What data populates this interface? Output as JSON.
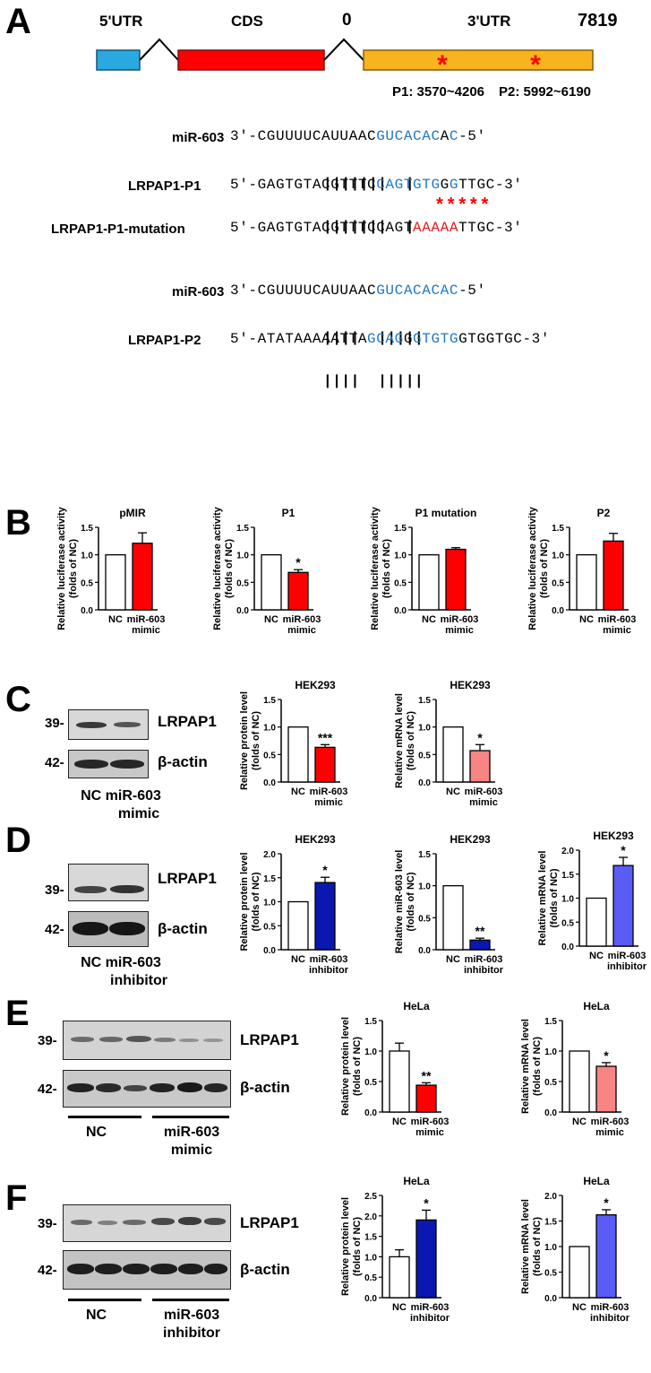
{
  "panels": {
    "A": "A",
    "B": "B",
    "C": "C",
    "D": "D",
    "E": "E",
    "F": "F"
  },
  "gene_map": {
    "utr5": "5'UTR",
    "cds": "CDS",
    "zero": "0",
    "utr3": "3'UTR",
    "end": "7819",
    "p1": "P1: 3570~4206",
    "p2": "P2: 5992~6190",
    "colors": {
      "utr5": "#29a9e0",
      "cds": "#ff0000",
      "utr3": "#f8b41f",
      "star": "#ff0000"
    }
  },
  "alignments": {
    "a1_name": "miR-603",
    "a1_seq": [
      {
        "t": "3′-CGUUUUCAUUAAC",
        "c": "#000000"
      },
      {
        "t": "GUCACAC",
        "c": "#1f77c4"
      },
      {
        "t": "A",
        "c": "#000000"
      },
      {
        "t": "C",
        "c": "#1f77c4"
      },
      {
        "t": "-5′",
        "c": "#000000"
      }
    ],
    "a1_bars": "|||||||  |",
    "a2_name": "LRPAP1-P1",
    "a2_seq": [
      {
        "t": "5′-GAGTGTACGTTTC",
        "c": "#000000"
      },
      {
        "t": "CAGTGTG",
        "c": "#1f77c4"
      },
      {
        "t": "G",
        "c": "#000000"
      },
      {
        "t": "G",
        "c": "#1f77c4"
      },
      {
        "t": "TTGC-3′",
        "c": "#000000"
      }
    ],
    "mut_stars": "*****",
    "a3_name": "LRPAP1-P1-mutation",
    "a3_seq": [
      {
        "t": "5′-GAGTGTACGTTTCCAGT",
        "c": "#000000"
      },
      {
        "t": "AAAAA",
        "c": "#e31a1c"
      },
      {
        "t": "TTGC-3′",
        "c": "#000000"
      }
    ],
    "a4_name": "miR-603",
    "a4_seq": [
      {
        "t": "3′-CGUUUUCAUUAAC",
        "c": "#000000"
      },
      {
        "t": "GUCA",
        "c": "#1f77c4"
      },
      {
        "t": "CACAC",
        "c": "#1f77c4"
      },
      {
        "t": "-5′",
        "c": "#000000"
      }
    ],
    "a4_bars": "||||  |||||",
    "a5_name": "LRPAP1-P2",
    "a5_seq": [
      {
        "t": "5′-ATATAAAAATTA",
        "c": "#000000"
      },
      {
        "t": "GCAG",
        "c": "#1f77c4"
      },
      {
        "t": "G",
        "c": "#000000"
      },
      {
        "t": "GTGTG",
        "c": "#1f77c4"
      },
      {
        "t": "GTGGTGC-3′",
        "c": "#000000"
      }
    ]
  },
  "blots": {
    "lrpap1": "LRPAP1",
    "actin": "β-actin",
    "mw39": "39-",
    "mw42": "42-",
    "c_lanes": "NC miR-603",
    "c_lanes2": "mimic",
    "d_lanes": "NC miR-603",
    "d_lanes2": "inhibitor",
    "e_nc": "NC",
    "e_mir": "miR-603",
    "e_mir2": "mimic",
    "f_nc": "NC",
    "f_mir": "miR-603",
    "f_mir2": "inhibitor"
  },
  "chart_data": [
    {
      "id": "B1",
      "type": "bar",
      "title": "pMIR",
      "ylabel": "Relative luciferase activity\n(folds of NC)",
      "categories": [
        "NC",
        "miR-603\nmimic"
      ],
      "values": [
        1.0,
        1.21
      ],
      "errors": [
        0,
        0.19
      ],
      "ylim": [
        0,
        1.5
      ],
      "ticks": [
        "0.0",
        "0.5",
        "1.0",
        "1.5"
      ],
      "colors": [
        "#ffffff",
        "#ff0000"
      ],
      "sig": [
        "",
        ""
      ]
    },
    {
      "id": "B2",
      "type": "bar",
      "title": "P1",
      "ylabel": "Relative luciferase activity\n(folds of NC)",
      "categories": [
        "NC",
        "miR-603\nmimic"
      ],
      "values": [
        1.0,
        0.68
      ],
      "errors": [
        0,
        0.05
      ],
      "ylim": [
        0,
        1.5
      ],
      "ticks": [
        "0.0",
        "0.5",
        "1.0",
        "1.5"
      ],
      "colors": [
        "#ffffff",
        "#ff0000"
      ],
      "sig": [
        "",
        "*"
      ]
    },
    {
      "id": "B3",
      "type": "bar",
      "title": "P1 mutation",
      "ylabel": "Relative luciferase activity\n(folds of NC)",
      "categories": [
        "NC",
        "miR-603\nmimic"
      ],
      "values": [
        1.0,
        1.1
      ],
      "errors": [
        0,
        0.03
      ],
      "ylim": [
        0,
        1.5
      ],
      "ticks": [
        "0.0",
        "0.5",
        "1.0",
        "1.5"
      ],
      "colors": [
        "#ffffff",
        "#ff0000"
      ],
      "sig": [
        "",
        ""
      ]
    },
    {
      "id": "B4",
      "type": "bar",
      "title": "P2",
      "ylabel": "Relative luciferase activity\n(folds of NC)",
      "categories": [
        "NC",
        "miR-603\nmimic"
      ],
      "values": [
        1.0,
        1.25
      ],
      "errors": [
        0,
        0.14
      ],
      "ylim": [
        0,
        1.5
      ],
      "ticks": [
        "0.0",
        "0.5",
        "1.0",
        "1.5"
      ],
      "colors": [
        "#ffffff",
        "#ff0000"
      ],
      "sig": [
        "",
        ""
      ]
    },
    {
      "id": "C1",
      "type": "bar",
      "title": "HEK293",
      "ylabel": "Relative protein level\n(folds of NC)",
      "categories": [
        "NC",
        "miR-603\nmimic"
      ],
      "values": [
        1.0,
        0.63
      ],
      "errors": [
        0,
        0.05
      ],
      "ylim": [
        0,
        1.5
      ],
      "ticks": [
        "0.0",
        "0.5",
        "1.0",
        "1.5"
      ],
      "colors": [
        "#ffffff",
        "#ff0000"
      ],
      "sig": [
        "",
        "***"
      ]
    },
    {
      "id": "C2",
      "type": "bar",
      "title": "HEK293",
      "ylabel": "Relative mRNA level\n(folds of NC)",
      "categories": [
        "NC",
        "miR-603\nmimic"
      ],
      "values": [
        1.0,
        0.57
      ],
      "errors": [
        0,
        0.11
      ],
      "ylim": [
        0,
        1.5
      ],
      "ticks": [
        "0.0",
        "0.5",
        "1.0",
        "1.5"
      ],
      "colors": [
        "#ffffff",
        "#f98484"
      ],
      "sig": [
        "",
        "*"
      ]
    },
    {
      "id": "D1",
      "type": "bar",
      "title": "HEK293",
      "ylabel": "Relative protein level\n(folds of NC)",
      "categories": [
        "NC",
        "miR-603\ninhibitor"
      ],
      "values": [
        1.0,
        1.4
      ],
      "errors": [
        0,
        0.11
      ],
      "ylim": [
        0,
        2.0
      ],
      "ticks": [
        "0.0",
        "0.5",
        "1.0",
        "1.5",
        "2.0"
      ],
      "colors": [
        "#ffffff",
        "#0a17b0"
      ],
      "sig": [
        "",
        "*"
      ]
    },
    {
      "id": "D2",
      "type": "bar",
      "title": "HEK293",
      "ylabel": "Relative miR-603 level\n(folds of NC)",
      "categories": [
        "NC",
        "miR-603\ninhibitor"
      ],
      "values": [
        1.0,
        0.15
      ],
      "errors": [
        0,
        0.03
      ],
      "ylim": [
        0,
        1.5
      ],
      "ticks": [
        "0.0",
        "0.5",
        "1.0",
        "1.5"
      ],
      "colors": [
        "#ffffff",
        "#0a17b0"
      ],
      "sig": [
        "",
        "**"
      ]
    },
    {
      "id": "D3",
      "type": "bar",
      "title": "HEK293",
      "ylabel": "Relative mRNA level\n(folds of NC)",
      "categories": [
        "NC",
        "miR-603\ninhibitor"
      ],
      "values": [
        1.0,
        1.68
      ],
      "errors": [
        0,
        0.17
      ],
      "ylim": [
        0,
        2.0
      ],
      "ticks": [
        "0.0",
        "0.5",
        "1.0",
        "1.5",
        "2.0"
      ],
      "colors": [
        "#ffffff",
        "#5a5cf6"
      ],
      "sig": [
        "",
        "*"
      ]
    },
    {
      "id": "E1",
      "type": "bar",
      "title": "HeLa",
      "ylabel": "Relative protein level\n(folds of NC)",
      "categories": [
        "NC",
        "miR-603\nmimic"
      ],
      "values": [
        1.0,
        0.44
      ],
      "errors": [
        0.13,
        0.04
      ],
      "ylim": [
        0,
        1.5
      ],
      "ticks": [
        "0.0",
        "0.5",
        "1.0",
        "1.5"
      ],
      "colors": [
        "#ffffff",
        "#ff0000"
      ],
      "sig": [
        "",
        "**"
      ]
    },
    {
      "id": "E2",
      "type": "bar",
      "title": "HeLa",
      "ylabel": "Relative mRNA level\n(folds of NC)",
      "categories": [
        "NC",
        "miR-603\nmimic"
      ],
      "values": [
        1.0,
        0.75
      ],
      "errors": [
        0,
        0.06
      ],
      "ylim": [
        0,
        1.5
      ],
      "ticks": [
        "0.0",
        "0.5",
        "1.0",
        "1.5"
      ],
      "colors": [
        "#ffffff",
        "#f98484"
      ],
      "sig": [
        "",
        "*"
      ]
    },
    {
      "id": "F1",
      "type": "bar",
      "title": "HeLa",
      "ylabel": "Relative protein level\n(folds of NC)",
      "categories": [
        "NC",
        "miR-603\ninhibitor"
      ],
      "values": [
        1.0,
        1.9
      ],
      "errors": [
        0.17,
        0.24
      ],
      "ylim": [
        0,
        2.5
      ],
      "ticks": [
        "0.0",
        "0.5",
        "1.0",
        "1.5",
        "2.0",
        "2.5"
      ],
      "colors": [
        "#ffffff",
        "#0a17b0"
      ],
      "sig": [
        "",
        "*"
      ]
    },
    {
      "id": "F2",
      "type": "bar",
      "title": "HeLa",
      "ylabel": "Relative mRNA level\n(folds of NC)",
      "categories": [
        "NC",
        "miR-603\ninhibitor"
      ],
      "values": [
        1.0,
        1.62
      ],
      "errors": [
        0,
        0.1
      ],
      "ylim": [
        0,
        2.0
      ],
      "ticks": [
        "0.0",
        "0.5",
        "1.0",
        "1.5",
        "2.0"
      ],
      "colors": [
        "#ffffff",
        "#5a5cf6"
      ],
      "sig": [
        "",
        "*"
      ]
    }
  ]
}
